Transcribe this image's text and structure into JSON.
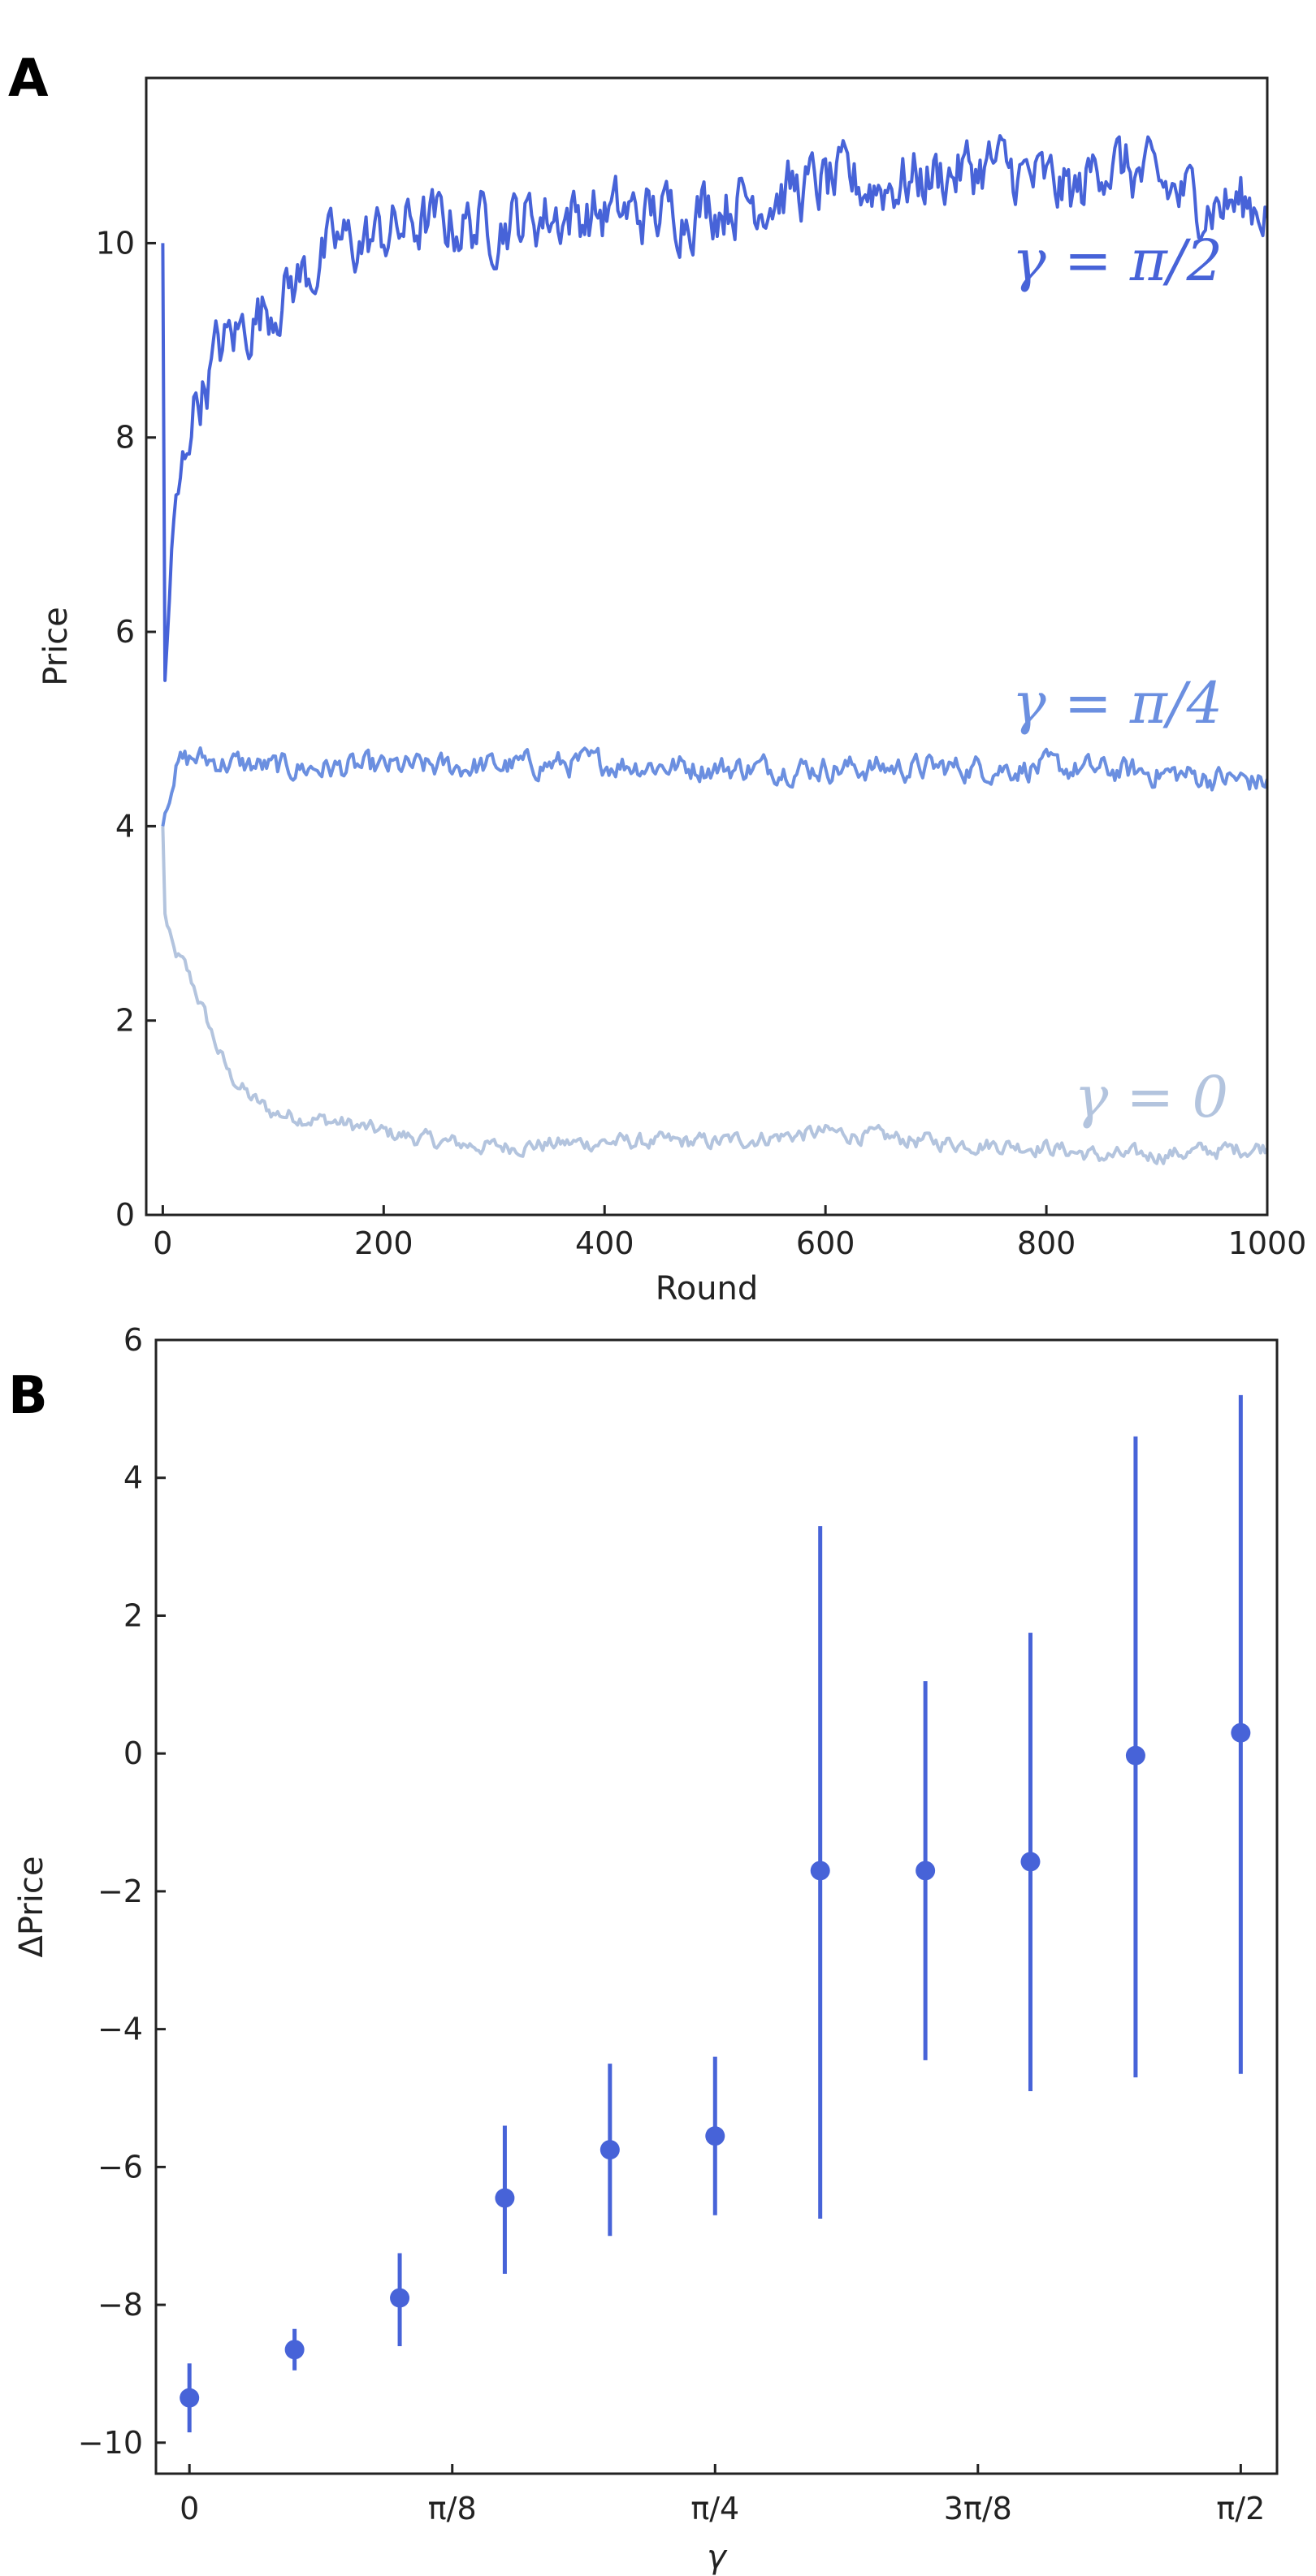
{
  "chart_data": [
    {
      "panel": "A",
      "type": "line",
      "title": "",
      "xlabel": "Round",
      "ylabel": "Price",
      "xlim": [
        -15,
        1000
      ],
      "ylim": [
        0,
        11.7
      ],
      "xticks": [
        0,
        200,
        400,
        600,
        800,
        1000
      ],
      "xtick_labels": [
        "0",
        "200",
        "400",
        "600",
        "800",
        "1000"
      ],
      "yticks": [
        0,
        2,
        4,
        6,
        8,
        10
      ],
      "ytick_labels": [
        "0",
        "2",
        "4",
        "6",
        "8",
        "10"
      ],
      "colors": {
        "gamma_pi_2": "#4763d8",
        "gamma_pi_4": "#6b8fe0",
        "gamma_0": "#b3c4de"
      },
      "series": [
        {
          "id": "gamma_pi_2",
          "name": "γ = π/2",
          "x": [
            0,
            2,
            5,
            10,
            15,
            20,
            25,
            30,
            40,
            50,
            60,
            80,
            100,
            120,
            140,
            160,
            180,
            200,
            230,
            260,
            300,
            350,
            400,
            450,
            500,
            550,
            600,
            650,
            700,
            750,
            800,
            830,
            850,
            880,
            920,
            960,
            1000
          ],
          "y": [
            10.0,
            5.5,
            6.2,
            7.0,
            7.4,
            7.8,
            8.2,
            8.4,
            8.6,
            8.9,
            9.0,
            9.2,
            9.4,
            9.6,
            9.8,
            10.0,
            10.0,
            10.1,
            10.2,
            10.2,
            10.2,
            10.3,
            10.3,
            10.3,
            10.4,
            10.5,
            10.6,
            10.6,
            10.7,
            10.8,
            10.6,
            10.5,
            10.9,
            10.7,
            10.5,
            10.4,
            10.4
          ],
          "noise": 0.28
        },
        {
          "id": "gamma_pi_4",
          "name": "γ = π/4",
          "x": [
            0,
            3,
            8,
            15,
            30,
            60,
            100,
            200,
            300,
            400,
            500,
            600,
            700,
            800,
            900,
            1000
          ],
          "y": [
            4.0,
            4.2,
            4.5,
            4.65,
            4.7,
            4.65,
            4.6,
            4.6,
            4.62,
            4.65,
            4.6,
            4.6,
            4.6,
            4.6,
            4.55,
            4.45
          ],
          "noise": 0.11
        },
        {
          "id": "gamma_0",
          "name": "γ = 0",
          "x": [
            0,
            2,
            5,
            10,
            20,
            30,
            40,
            50,
            60,
            80,
            100,
            130,
            160,
            200,
            250,
            300,
            400,
            500,
            600,
            700,
            800,
            850,
            900,
            1000
          ],
          "y": [
            4.0,
            3.1,
            2.9,
            2.7,
            2.55,
            2.3,
            2.0,
            1.7,
            1.45,
            1.2,
            1.05,
            1.0,
            0.95,
            0.85,
            0.75,
            0.7,
            0.75,
            0.75,
            0.85,
            0.75,
            0.7,
            0.6,
            0.62,
            0.7
          ],
          "noise": 0.07
        }
      ]
    },
    {
      "panel": "B",
      "type": "scatter",
      "title": "",
      "xlabel": "γ",
      "ylabel": "ΔPrice",
      "xlim": [
        -0.05,
        1.625
      ],
      "ylim": [
        -10.45,
        6.0
      ],
      "xticks": [
        0,
        0.3927,
        0.7854,
        1.1781,
        1.5708
      ],
      "xtick_labels": [
        "0",
        "π/8",
        "π/4",
        "3π/8",
        "π/2"
      ],
      "yticks": [
        -10,
        -8,
        -6,
        -4,
        -2,
        0,
        2,
        4,
        6
      ],
      "ytick_labels": [
        "−10",
        "−8",
        "−6",
        "−4",
        "−2",
        "0",
        "2",
        "4",
        "6"
      ],
      "color": "#4763d8",
      "points": [
        {
          "x": 0.0,
          "y": -9.35,
          "lo": -9.85,
          "hi": -8.85
        },
        {
          "x": 0.1571,
          "y": -8.65,
          "lo": -8.95,
          "hi": -8.35
        },
        {
          "x": 0.3142,
          "y": -7.9,
          "lo": -8.6,
          "hi": -7.25
        },
        {
          "x": 0.4712,
          "y": -6.45,
          "lo": -7.55,
          "hi": -5.4
        },
        {
          "x": 0.6283,
          "y": -5.75,
          "lo": -7.0,
          "hi": -4.5
        },
        {
          "x": 0.7854,
          "y": -5.55,
          "lo": -6.7,
          "hi": -4.4
        },
        {
          "x": 0.9425,
          "y": -1.7,
          "lo": -6.75,
          "hi": 3.3
        },
        {
          "x": 1.0996,
          "y": -1.7,
          "lo": -4.45,
          "hi": 1.05
        },
        {
          "x": 1.2566,
          "y": -1.57,
          "lo": -4.9,
          "hi": 1.75
        },
        {
          "x": 1.4137,
          "y": -0.03,
          "lo": -4.7,
          "hi": 4.6
        },
        {
          "x": 1.5708,
          "y": 0.3,
          "lo": -4.65,
          "hi": 5.2
        }
      ]
    }
  ],
  "labels": {
    "panel_a": "A",
    "panel_b": "B",
    "gamma_pi_2": "γ = π/2",
    "gamma_pi_4": "γ = π/4",
    "gamma_0": "γ = 0"
  }
}
